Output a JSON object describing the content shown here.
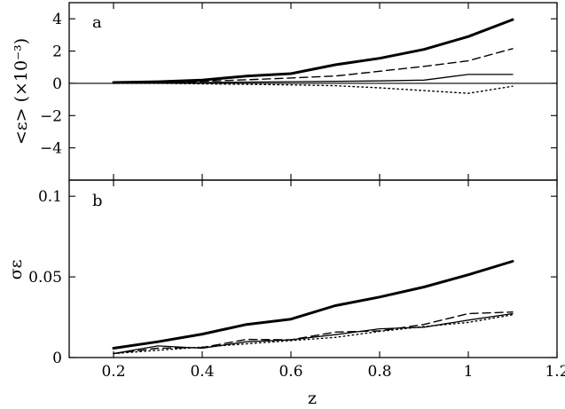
{
  "chart_data": [
    {
      "panel": "a",
      "type": "line",
      "panel_label": "a",
      "ylabel": "<ε> (×10⁻³)",
      "ylim": [
        -6,
        5
      ],
      "yticks": [
        4,
        2,
        0,
        -2,
        -4
      ],
      "ytick_labels": [
        "4",
        "2",
        "0",
        "−2",
        "−4"
      ],
      "xlim": [
        0.1,
        1.2
      ],
      "zero_line": true,
      "x": [
        0.2,
        0.3,
        0.4,
        0.5,
        0.6,
        0.7,
        0.8,
        0.9,
        1.0,
        1.1
      ],
      "series": [
        {
          "style": "thick-solid",
          "values": [
            0.05,
            0.1,
            0.2,
            0.45,
            0.6,
            1.15,
            1.55,
            2.1,
            2.9,
            3.95
          ]
        },
        {
          "style": "dashed",
          "values": [
            0.0,
            0.05,
            0.12,
            0.22,
            0.33,
            0.45,
            0.75,
            1.05,
            1.4,
            2.15
          ]
        },
        {
          "style": "thin-solid",
          "values": [
            0.0,
            0.02,
            0.05,
            0.08,
            0.1,
            0.12,
            0.15,
            0.2,
            0.55,
            0.55
          ]
        },
        {
          "style": "dotted",
          "values": [
            0.0,
            0.0,
            -0.03,
            -0.06,
            -0.1,
            -0.15,
            -0.28,
            -0.45,
            -0.62,
            -0.18
          ]
        }
      ]
    },
    {
      "panel": "b",
      "type": "line",
      "panel_label": "b",
      "ylabel": "σε",
      "xlabel": "z",
      "ylim": [
        0,
        0.11
      ],
      "yticks": [
        0,
        0.05,
        0.1
      ],
      "ytick_labels": [
        "0",
        "0.05",
        "0.1"
      ],
      "xlim": [
        0.1,
        1.2
      ],
      "xticks": [
        0.2,
        0.4,
        0.6,
        0.8,
        1.0,
        1.2
      ],
      "xtick_labels": [
        "0.2",
        "0.4",
        "0.6",
        "0.8",
        "1",
        "1.2"
      ],
      "x": [
        0.2,
        0.3,
        0.4,
        0.5,
        0.6,
        0.7,
        0.8,
        0.9,
        1.0,
        1.1
      ],
      "series": [
        {
          "style": "thick-solid",
          "values": [
            0.0058,
            0.0098,
            0.0145,
            0.0205,
            0.0238,
            0.0322,
            0.0375,
            0.0437,
            0.0513,
            0.0597
          ]
        },
        {
          "style": "dashed",
          "values": [
            0.0025,
            0.0058,
            0.0062,
            0.0112,
            0.011,
            0.0158,
            0.0165,
            0.0205,
            0.0272,
            0.0282
          ]
        },
        {
          "style": "thin-solid",
          "values": [
            0.0025,
            0.0072,
            0.0058,
            0.0098,
            0.011,
            0.0142,
            0.0178,
            0.0188,
            0.0232,
            0.0272
          ]
        },
        {
          "style": "dotted",
          "values": [
            0.0025,
            0.0045,
            0.0065,
            0.0085,
            0.0105,
            0.0125,
            0.0162,
            0.0192,
            0.0218,
            0.0265
          ]
        }
      ]
    }
  ]
}
